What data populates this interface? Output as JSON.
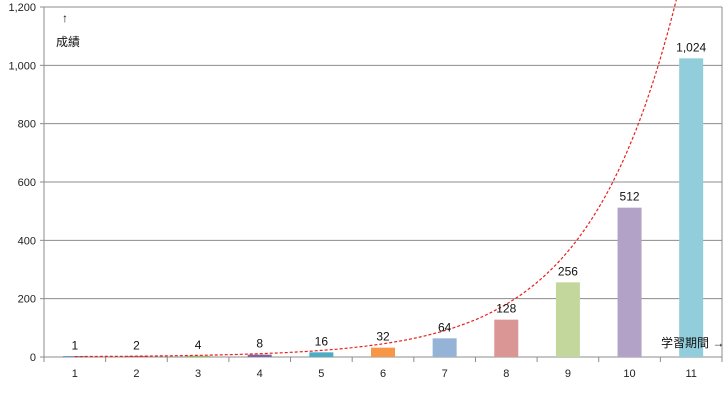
{
  "chart_data": {
    "type": "bar",
    "categories": [
      "1",
      "2",
      "3",
      "4",
      "5",
      "6",
      "7",
      "8",
      "9",
      "10",
      "11"
    ],
    "values": [
      1,
      2,
      4,
      8,
      16,
      32,
      64,
      128,
      256,
      512,
      1024
    ],
    "data_labels": [
      "1",
      "2",
      "4",
      "8",
      "16",
      "32",
      "64",
      "128",
      "256",
      "512",
      "1,024"
    ],
    "bar_colors": [
      "#4f81bd",
      "#c0504d",
      "#9bbb59",
      "#8064a2",
      "#4bacc6",
      "#f79646",
      "#95b3d7",
      "#d99694",
      "#c3d69b",
      "#b3a2c7",
      "#92cddc"
    ],
    "ylim": [
      0,
      1200
    ],
    "yticks": [
      0,
      200,
      400,
      600,
      800,
      1000,
      1200
    ],
    "ytick_labels": [
      "0",
      "200",
      "400",
      "600",
      "800",
      "1,000",
      "1,200"
    ],
    "ylabel_arrow": "↑",
    "ylabel": "成績",
    "xlabel": "学習期間 →",
    "grid": true,
    "trendline": {
      "type": "exponential",
      "color": "#e8211d",
      "style": "dashed"
    }
  }
}
